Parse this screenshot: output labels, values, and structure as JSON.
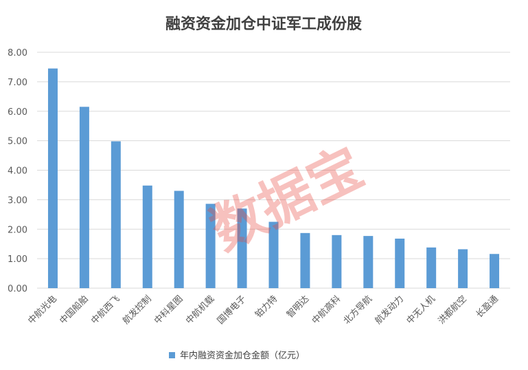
{
  "chart_data": {
    "type": "bar",
    "title": "融资资金加仓中证军工成份股",
    "categories": [
      "中航光电",
      "中国船舶",
      "中航西飞",
      "航发控制",
      "中科星图",
      "中航机载",
      "国博电子",
      "铂力特",
      "智明达",
      "中航高科",
      "北方导航",
      "航发动力",
      "中无人机",
      "洪都航空",
      "长盈通"
    ],
    "series": [
      {
        "name": "年内融资资金加仓金额（亿元）",
        "values": [
          7.45,
          6.15,
          4.98,
          3.48,
          3.3,
          2.86,
          2.7,
          2.25,
          1.87,
          1.8,
          1.77,
          1.68,
          1.38,
          1.32,
          1.16
        ]
      }
    ],
    "yticks": [
      "0.00",
      "1.00",
      "2.00",
      "3.00",
      "4.00",
      "5.00",
      "6.00",
      "7.00",
      "8.00"
    ],
    "ylim": [
      0,
      8
    ],
    "xlabel": "",
    "ylabel": "",
    "grid": true,
    "legend_position": "bottom",
    "bar_color": "#5b9bd5",
    "grid_color": "#d9d9d9"
  },
  "watermark": "数据宝",
  "watermark_color": "#e8473c"
}
